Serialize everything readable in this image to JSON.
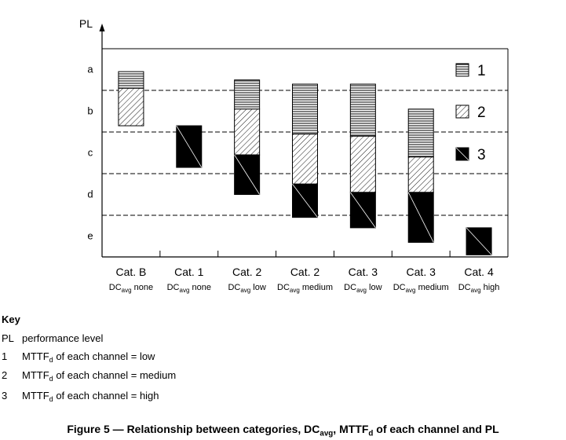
{
  "chart_data": {
    "type": "bar",
    "ylabel": "PL",
    "y_levels": [
      "a",
      "b",
      "c",
      "d",
      "e"
    ],
    "categories": [
      {
        "cat": "Cat. B",
        "dc_prefix": "DC",
        "dc_sub": "avg",
        "dc_suffix": " none"
      },
      {
        "cat": "Cat. 1",
        "dc_prefix": "DC",
        "dc_sub": "avg",
        "dc_suffix": " none"
      },
      {
        "cat": "Cat. 2",
        "dc_prefix": "DC",
        "dc_sub": "avg",
        "dc_suffix": " low"
      },
      {
        "cat": "Cat. 2",
        "dc_prefix": "DC",
        "dc_sub": "avg",
        "dc_suffix": " medium"
      },
      {
        "cat": "Cat. 3",
        "dc_prefix": "DC",
        "dc_sub": "avg",
        "dc_suffix": " low"
      },
      {
        "cat": "Cat. 3",
        "dc_prefix": "DC",
        "dc_sub": "avg",
        "dc_suffix": " medium"
      },
      {
        "cat": "Cat. 4",
        "dc_prefix": "DC",
        "dc_sub": "avg",
        "dc_suffix": " high"
      }
    ],
    "series": [
      {
        "name": "1",
        "ranges": [
          [
            0.55,
            0.95
          ],
          null,
          [
            0.75,
            1.45
          ],
          [
            0.85,
            2.05
          ],
          [
            0.85,
            2.1
          ],
          [
            1.45,
            2.6
          ],
          null
        ]
      },
      {
        "name": "2",
        "ranges": [
          [
            0.95,
            1.85
          ],
          null,
          [
            1.45,
            2.55
          ],
          [
            2.05,
            3.25
          ],
          [
            2.1,
            3.45
          ],
          [
            2.6,
            3.45
          ],
          null
        ]
      },
      {
        "name": "3",
        "ranges": [
          null,
          [
            1.85,
            2.85
          ],
          [
            2.55,
            3.5
          ],
          [
            3.25,
            4.05
          ],
          [
            3.45,
            4.3
          ],
          [
            3.45,
            4.65
          ],
          [
            4.3,
            4.95
          ]
        ]
      }
    ],
    "y_range": [
      0,
      5
    ],
    "level_separators": [
      1,
      2,
      3,
      4
    ],
    "legend_placement": "top-right",
    "legend": [
      "1",
      "2",
      "3"
    ]
  },
  "key": {
    "title": "Key",
    "rows": [
      {
        "k": "PL",
        "text": "performance level"
      },
      {
        "k": "1",
        "pre": "MTTF",
        "sub": "d",
        "post": " of each channel = low"
      },
      {
        "k": "2",
        "pre": "MTTF",
        "sub": "d",
        "post": " of each channel = medium"
      },
      {
        "k": "3",
        "pre": "MTTF",
        "sub": "d",
        "post": " of each channel = high"
      }
    ]
  },
  "caption": {
    "p1": "Figure 5 — Relationship between categories, DC",
    "s1": "avg",
    "p2": ", MTTF",
    "s2": "d",
    "p3": " of each channel and PL"
  }
}
